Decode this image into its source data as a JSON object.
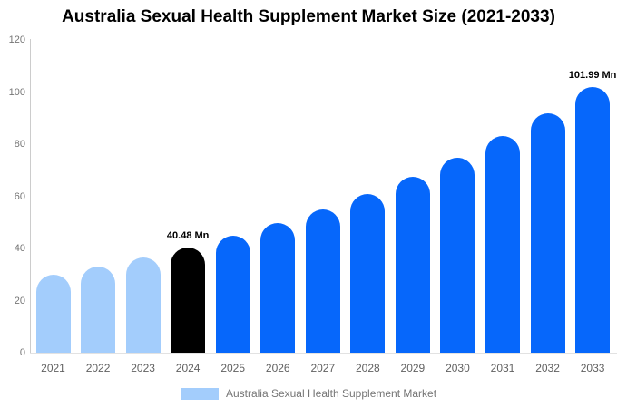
{
  "title": "Australia Sexual Health Supplement Market Size (2021-2033)",
  "legend": {
    "label": "Australia Sexual Health Supplement Market",
    "swatch_color": "#A3CDFC"
  },
  "colors": {
    "historical": "#A3CDFC",
    "highlight": "#000000",
    "forecast": "#0667FB",
    "axis_text": "#757575",
    "x_label_text": "#616161"
  },
  "chart_data": {
    "type": "bar",
    "title": "Australia Sexual Health Supplement Market Size (2021-2033)",
    "unit": "Mn",
    "categories": [
      "2021",
      "2022",
      "2023",
      "2024",
      "2025",
      "2026",
      "2027",
      "2028",
      "2029",
      "2030",
      "2031",
      "2032",
      "2033"
    ],
    "values": [
      29.8,
      33.0,
      36.5,
      40.48,
      44.85,
      49.69,
      55.06,
      61.0,
      67.59,
      74.89,
      82.98,
      91.94,
      101.99
    ],
    "bar_color_keys": [
      "historical",
      "historical",
      "historical",
      "highlight",
      "forecast",
      "forecast",
      "forecast",
      "forecast",
      "forecast",
      "forecast",
      "forecast",
      "forecast",
      "forecast"
    ],
    "annotations": [
      {
        "category": "2024",
        "text": "40.48 Mn"
      },
      {
        "category": "2033",
        "text": "101.99 Mn"
      }
    ],
    "xlabel": "",
    "ylabel": "",
    "ylim": [
      0,
      120
    ],
    "yticks": [
      0,
      20,
      40,
      60,
      80,
      100,
      120
    ],
    "grid": false,
    "legend_position": "bottom"
  }
}
